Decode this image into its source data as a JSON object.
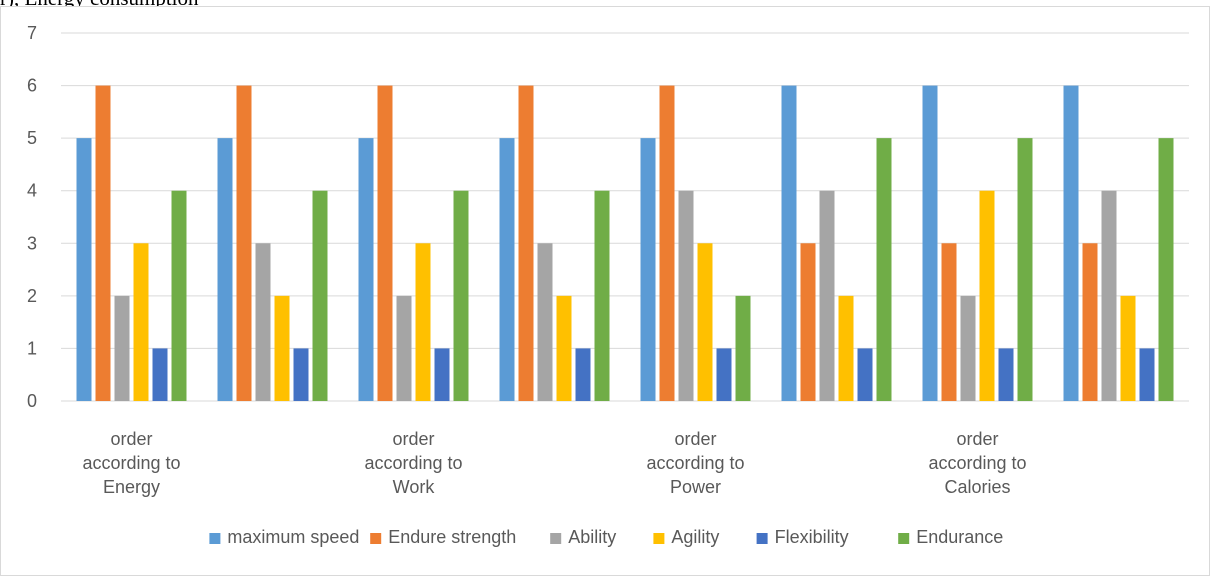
{
  "header_fragment": "r), Energy consumption",
  "chart_data": {
    "type": "bar",
    "categories": [
      "order according to Energy",
      "",
      "order according to Work",
      "",
      "order according to Power",
      "",
      "order according to Calories",
      ""
    ],
    "series": [
      {
        "name": "maximum speed",
        "color": "#5b9bd5",
        "values": [
          5,
          5,
          5,
          5,
          5,
          6,
          6,
          6
        ]
      },
      {
        "name": "Endure strength",
        "color": "#ed7d31",
        "values": [
          6,
          6,
          6,
          6,
          6,
          3,
          3,
          3
        ]
      },
      {
        "name": "Ability",
        "color": "#a5a5a5",
        "values": [
          2,
          3,
          2,
          3,
          4,
          4,
          2,
          4
        ]
      },
      {
        "name": "Agility",
        "color": "#ffc000",
        "values": [
          3,
          2,
          3,
          2,
          3,
          2,
          4,
          2
        ]
      },
      {
        "name": "Flexibility",
        "color": "#4472c4",
        "values": [
          1,
          1,
          1,
          1,
          1,
          1,
          1,
          1
        ]
      },
      {
        "name": "Endurance",
        "color": "#70ad47",
        "values": [
          4,
          4,
          4,
          4,
          2,
          5,
          5,
          5
        ]
      }
    ],
    "ylim": [
      0,
      7
    ],
    "yticks": [
      0,
      1,
      2,
      3,
      4,
      5,
      6,
      7
    ],
    "grid": true,
    "legend_position": "bottom",
    "gridline_color": "#d9d9d9"
  }
}
